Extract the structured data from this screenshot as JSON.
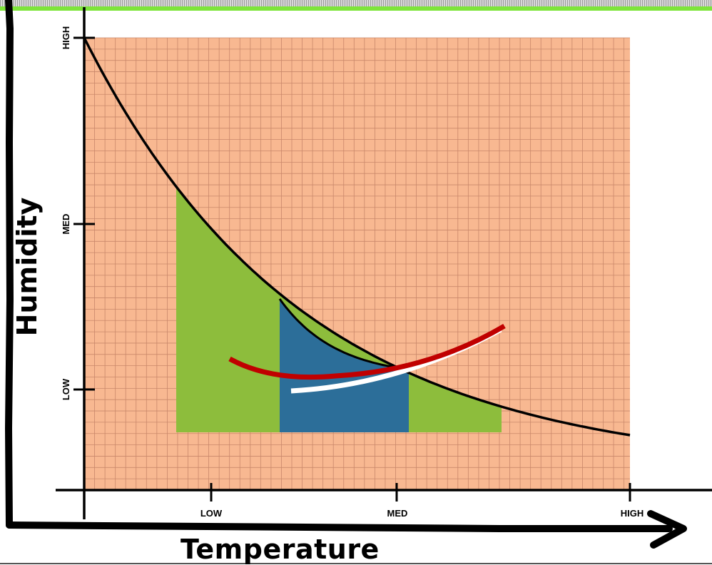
{
  "diagram": {
    "x_axis_title": "Temperature",
    "y_axis_title": "Humidity",
    "x_ticks": [
      "LOW",
      "MED",
      "HIGH"
    ],
    "y_ticks": [
      "HIGH",
      "MED",
      "LOW"
    ],
    "colors": {
      "grid_background": "#f8b891",
      "grid_lines": "#c9876a",
      "green_region": "#8dbd3c",
      "blue_region": "#2c6e99",
      "red_curve": "#c00000",
      "white_curve": "#ffffff",
      "top_strip_green": "#7ee53a",
      "axis": "#000000"
    }
  }
}
